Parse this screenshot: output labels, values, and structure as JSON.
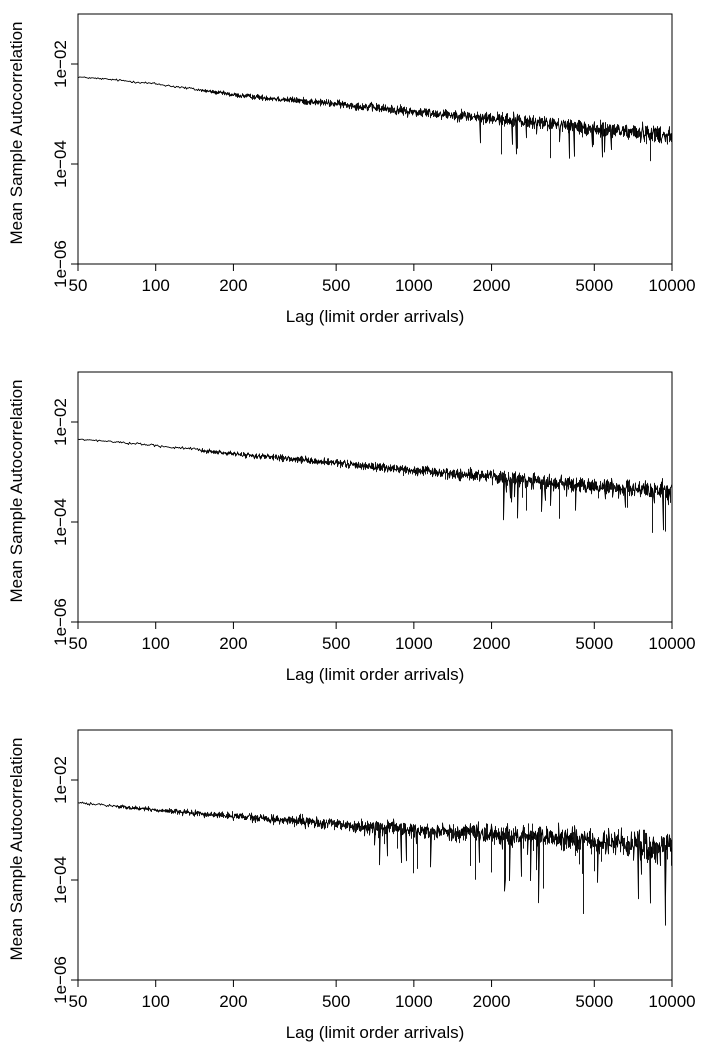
{
  "chart_data": [
    {
      "type": "line",
      "xlabel": "Lag (limit order arrivals)",
      "ylabel": "Mean Sample Autocorrelation",
      "x_scale": "log",
      "y_scale": "log",
      "xlim": [
        50,
        10000
      ],
      "ylim": [
        1e-06,
        0.1
      ],
      "x_ticks": [
        "50",
        "100",
        "200",
        "500",
        "1000",
        "2000",
        "5000",
        "10000"
      ],
      "y_ticks": [
        "1e−06",
        "1e−04",
        "1e−02"
      ],
      "series": [
        {
          "x": [
            50,
            70,
            100,
            150,
            200,
            300,
            500,
            700,
            1000,
            1500,
            2000,
            3000,
            5000,
            7000,
            10000
          ],
          "y": [
            0.0055,
            0.0048,
            0.004,
            0.003,
            0.0024,
            0.002,
            0.0016,
            0.00135,
            0.0011,
            0.00095,
            0.0008,
            0.00068,
            0.0005,
            0.00043,
            0.00038
          ],
          "noise_decades": [
            0.02,
            0.03,
            0.04,
            0.05,
            0.07,
            0.09,
            0.11,
            0.13,
            0.15,
            0.17,
            0.19,
            0.21,
            0.24,
            0.26,
            0.29
          ]
        }
      ]
    },
    {
      "type": "line",
      "xlabel": "Lag (limit order arrivals)",
      "ylabel": "Mean Sample Autocorrelation",
      "x_scale": "log",
      "y_scale": "log",
      "xlim": [
        50,
        10000
      ],
      "ylim": [
        1e-06,
        0.1
      ],
      "x_ticks": [
        "50",
        "100",
        "200",
        "500",
        "1000",
        "2000",
        "5000",
        "10000"
      ],
      "y_ticks": [
        "1e−06",
        "1e−04",
        "1e−02"
      ],
      "series": [
        {
          "x": [
            50,
            70,
            100,
            150,
            200,
            300,
            500,
            700,
            1000,
            1500,
            2000,
            3000,
            5000,
            7000,
            10000
          ],
          "y": [
            0.0045,
            0.004,
            0.0034,
            0.0027,
            0.0023,
            0.0019,
            0.0015,
            0.00128,
            0.00105,
            0.0009,
            0.00078,
            0.00065,
            0.00052,
            0.00045,
            0.0004
          ],
          "noise_decades": [
            0.02,
            0.03,
            0.04,
            0.05,
            0.07,
            0.09,
            0.11,
            0.13,
            0.15,
            0.17,
            0.19,
            0.21,
            0.24,
            0.26,
            0.29
          ]
        }
      ]
    },
    {
      "type": "line",
      "xlabel": "Lag (limit order arrivals)",
      "ylabel": "Mean Sample Autocorrelation",
      "x_scale": "log",
      "y_scale": "log",
      "xlim": [
        50,
        10000
      ],
      "ylim": [
        1e-06,
        0.1
      ],
      "x_ticks": [
        "50",
        "100",
        "200",
        "500",
        "1000",
        "2000",
        "5000",
        "10000"
      ],
      "y_ticks": [
        "1e−06",
        "1e−04",
        "1e−02"
      ],
      "series": [
        {
          "x": [
            50,
            70,
            100,
            150,
            200,
            300,
            500,
            700,
            1000,
            1500,
            2000,
            3000,
            5000,
            7000,
            10000
          ],
          "y": [
            0.0035,
            0.003,
            0.0025,
            0.0021,
            0.0019,
            0.0016,
            0.0013,
            0.00115,
            0.001,
            0.0009,
            0.00082,
            0.00072,
            0.0006,
            0.00052,
            0.00045
          ],
          "noise_decades": [
            0.03,
            0.05,
            0.07,
            0.09,
            0.11,
            0.14,
            0.17,
            0.2,
            0.23,
            0.27,
            0.3,
            0.34,
            0.4,
            0.45,
            0.52
          ]
        }
      ]
    }
  ]
}
